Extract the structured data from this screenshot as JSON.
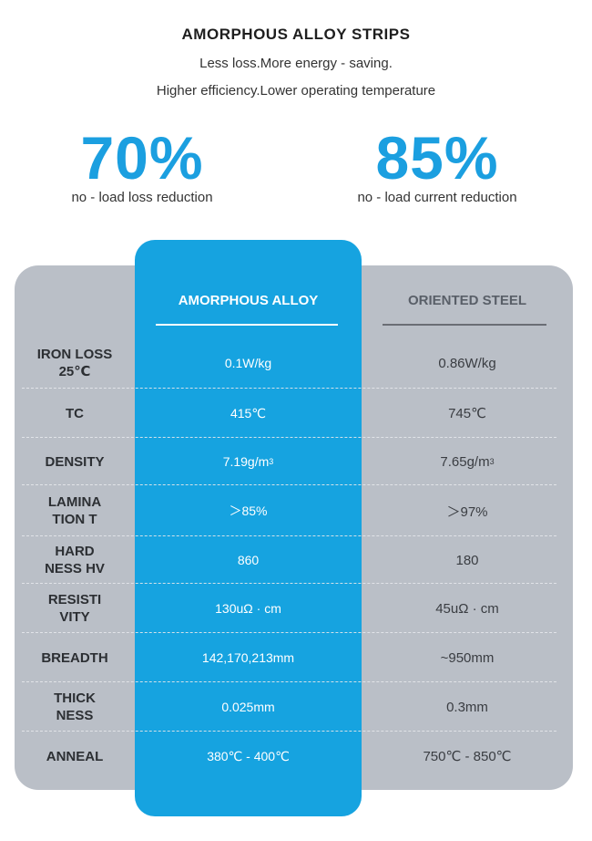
{
  "header": {
    "title": "AMORPHOUS ALLOY STRIPS",
    "line1": "Less loss.More energy - saving.",
    "line2": "Higher efficiency.Lower operating temperature"
  },
  "stats": [
    {
      "value": "70%",
      "caption": "no - load loss reduction"
    },
    {
      "value": "85%",
      "caption": "no - load current reduction"
    }
  ],
  "table": {
    "col_amorphous": "AMORPHOUS ALLOY",
    "col_oriented": "ORIENTED STEEL",
    "rows": [
      {
        "label_1": "IRON LOSS",
        "label_2": "25℃",
        "amorphous": "0.1W/kg",
        "oriented": "0.86W/kg"
      },
      {
        "label_1": "TC",
        "label_2": "",
        "amorphous": "415℃",
        "oriented": "745℃"
      },
      {
        "label_1": "DENSITY",
        "label_2": "",
        "amorphous": "7.19g/m",
        "amorphous_sup": "3",
        "oriented": "7.65g/m",
        "oriented_sup": "3"
      },
      {
        "label_1": "LAMINA",
        "label_2": "TION T",
        "amorphous": "＞85%",
        "oriented": "＞97%"
      },
      {
        "label_1": "HARD",
        "label_2": "NESS HV",
        "amorphous": "860",
        "oriented": "180"
      },
      {
        "label_1": "RESISTI",
        "label_2": "VITY",
        "amorphous": "130uΩ · cm",
        "oriented": "45uΩ · cm"
      },
      {
        "label_1": "BREADTH",
        "label_2": "",
        "amorphous": "142,170,213mm",
        "oriented": "~950mm"
      },
      {
        "label_1": "THICK",
        "label_2": "NESS",
        "amorphous": "0.025mm",
        "oriented": "0.3mm"
      },
      {
        "label_1": "ANNEAL",
        "label_2": "",
        "amorphous": "380℃ - 400℃",
        "oriented": "750℃ - 850℃"
      }
    ]
  },
  "colors": {
    "accent_blue": "#16a3e0",
    "stat_blue": "#1b9fe0",
    "panel_gray": "#babfc7"
  }
}
